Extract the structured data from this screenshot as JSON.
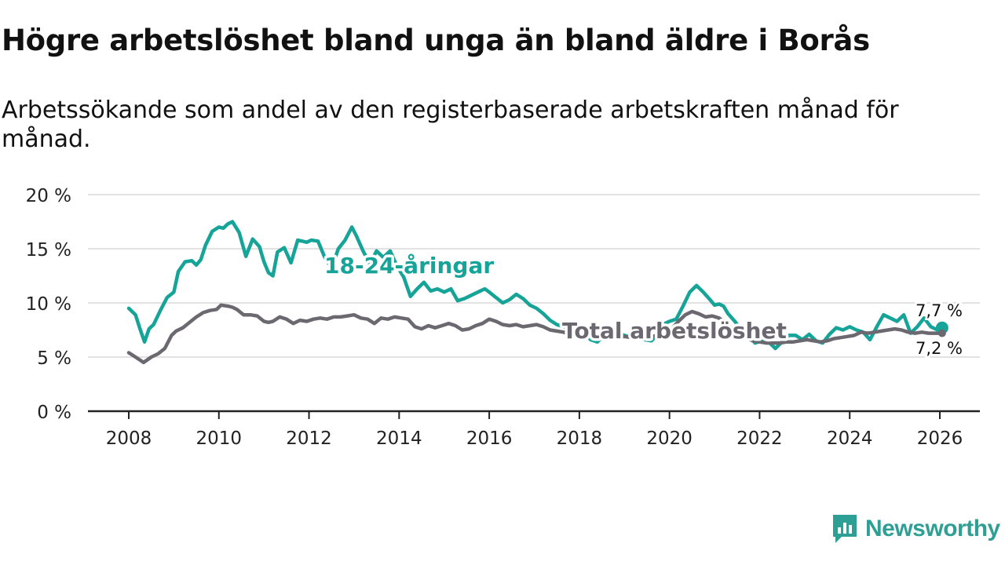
{
  "title": "Högre arbetslöshet bland unga än bland äldre i Borås",
  "subtitle": "Arbetssökande som andel av den registerbaserade arbetskraften månad för månad.",
  "brand": {
    "name": "Newsworthy",
    "icon": "newsworthy-logo-icon",
    "color": "#2d9f95"
  },
  "chart_data": {
    "type": "line",
    "title": "Högre arbetslöshet bland unga än bland äldre i Borås",
    "xlabel": "",
    "ylabel": "",
    "xlim": [
      2007.5,
      2026.95
    ],
    "ylim": [
      0,
      20
    ],
    "yticks": [
      0,
      5,
      10,
      15,
      20
    ],
    "ytick_labels": [
      "0 %",
      "5 %",
      "10 %",
      "15 %",
      "20 %"
    ],
    "xticks": [
      2008,
      2010,
      2012,
      2014,
      2016,
      2018,
      2020,
      2022,
      2024,
      2026
    ],
    "xtick_labels": [
      "2008",
      "2010",
      "2012",
      "2014",
      "2016",
      "2018",
      "2020",
      "2022",
      "2024",
      "2026"
    ],
    "grid": true,
    "series": [
      {
        "name": "18-24-åringar",
        "label": "18-24-åringar",
        "color": "#16a398",
        "end_label": "7,7 %",
        "x": [
          2008.0,
          2008.15,
          2008.25,
          2008.35,
          2008.45,
          2008.55,
          2008.7,
          2008.85,
          2009.0,
          2009.1,
          2009.25,
          2009.4,
          2009.5,
          2009.6,
          2009.7,
          2009.85,
          2010.0,
          2010.1,
          2010.2,
          2010.3,
          2010.45,
          2010.6,
          2010.75,
          2010.9,
          2011.0,
          2011.1,
          2011.2,
          2011.3,
          2011.45,
          2011.6,
          2011.75,
          2011.85,
          2011.95,
          2012.05,
          2012.2,
          2012.35,
          2012.5,
          2012.65,
          2012.8,
          2012.95,
          2013.05,
          2013.2,
          2013.35,
          2013.5,
          2013.65,
          2013.8,
          2013.95,
          2014.1,
          2014.25,
          2014.4,
          2014.55,
          2014.7,
          2014.85,
          2015.0,
          2015.15,
          2015.3,
          2015.45,
          2015.6,
          2015.75,
          2015.9,
          2016.0,
          2016.15,
          2016.3,
          2016.45,
          2016.6,
          2016.75,
          2016.9,
          2017.05,
          2017.2,
          2017.35,
          2017.5,
          2017.65,
          2017.8,
          2017.95,
          2018.1,
          2018.25,
          2018.4,
          2018.55,
          2018.7,
          2018.85,
          2019.0,
          2019.15,
          2019.3,
          2019.45,
          2019.6,
          2019.75,
          2019.9,
          2020.0,
          2020.15,
          2020.3,
          2020.45,
          2020.6,
          2020.75,
          2020.9,
          2021.0,
          2021.1,
          2021.2,
          2021.3,
          2021.45,
          2021.6,
          2021.75,
          2021.9,
          2022.05,
          2022.2,
          2022.35,
          2022.5,
          2022.65,
          2022.8,
          2022.95,
          2023.1,
          2023.25,
          2023.4,
          2023.55,
          2023.7,
          2023.85,
          2024.0,
          2024.15,
          2024.3,
          2024.45,
          2024.6,
          2024.75,
          2024.9,
          2025.05,
          2025.2,
          2025.35,
          2025.5,
          2025.65,
          2025.8,
          2025.95,
          2026.05
        ],
        "values": [
          9.5,
          8.9,
          7.6,
          6.4,
          7.6,
          8.0,
          9.3,
          10.5,
          11.0,
          12.9,
          13.8,
          13.9,
          13.5,
          14.0,
          15.3,
          16.6,
          17.0,
          16.9,
          17.3,
          17.5,
          16.5,
          14.3,
          15.9,
          15.2,
          13.8,
          12.8,
          12.5,
          14.7,
          15.1,
          13.7,
          15.8,
          15.7,
          15.6,
          15.8,
          15.7,
          14.2,
          13.2,
          15.0,
          15.8,
          17.0,
          16.2,
          14.8,
          13.6,
          14.8,
          14.2,
          14.8,
          13.4,
          12.4,
          10.6,
          11.3,
          11.9,
          11.1,
          11.3,
          11.0,
          11.3,
          10.2,
          10.4,
          10.7,
          11.0,
          11.3,
          11.0,
          10.5,
          10.0,
          10.3,
          10.8,
          10.4,
          9.8,
          9.5,
          9.0,
          8.4,
          8.0,
          7.8,
          7.6,
          7.7,
          7.3,
          6.6,
          6.4,
          7.0,
          7.5,
          7.2,
          7.0,
          6.8,
          7.0,
          6.6,
          6.5,
          7.2,
          8.1,
          8.3,
          8.5,
          9.7,
          11.0,
          11.6,
          11.0,
          10.3,
          9.8,
          9.9,
          9.7,
          9.0,
          8.3,
          7.5,
          7.0,
          6.3,
          6.5,
          6.4,
          5.8,
          6.4,
          7.0,
          7.0,
          6.6,
          7.1,
          6.5,
          6.3,
          7.1,
          7.7,
          7.5,
          7.8,
          7.5,
          7.3,
          6.6,
          7.8,
          8.9,
          8.6,
          8.3,
          8.9,
          7.2,
          7.8,
          8.6,
          7.8,
          7.5,
          7.7
        ]
      },
      {
        "name": "Total arbetslöshet",
        "label": "Total arbetslöshet",
        "color": "#6b6870",
        "end_label": "7,2 %",
        "x": [
          2008.0,
          2008.15,
          2008.33,
          2008.5,
          2008.65,
          2008.8,
          2008.95,
          2009.05,
          2009.2,
          2009.35,
          2009.5,
          2009.65,
          2009.8,
          2009.95,
          2010.05,
          2010.2,
          2010.3,
          2010.4,
          2010.55,
          2010.7,
          2010.85,
          2011.0,
          2011.1,
          2011.2,
          2011.35,
          2011.5,
          2011.65,
          2011.8,
          2011.95,
          2012.1,
          2012.25,
          2012.4,
          2012.55,
          2012.7,
          2012.85,
          2013.0,
          2013.15,
          2013.3,
          2013.45,
          2013.6,
          2013.75,
          2013.9,
          2014.05,
          2014.2,
          2014.35,
          2014.5,
          2014.65,
          2014.8,
          2014.95,
          2015.1,
          2015.25,
          2015.4,
          2015.55,
          2015.7,
          2015.85,
          2016.0,
          2016.15,
          2016.3,
          2016.45,
          2016.6,
          2016.75,
          2016.9,
          2017.05,
          2017.2,
          2017.35,
          2017.5,
          2017.65,
          2017.8,
          2017.95,
          2018.1,
          2018.25,
          2018.4,
          2018.55,
          2018.7,
          2018.85,
          2019.0,
          2019.15,
          2019.3,
          2019.45,
          2019.6,
          2019.75,
          2019.9,
          2020.05,
          2020.2,
          2020.35,
          2020.5,
          2020.65,
          2020.8,
          2020.95,
          2021.1,
          2021.25,
          2021.4,
          2021.55,
          2021.7,
          2021.85,
          2022.0,
          2022.15,
          2022.3,
          2022.45,
          2022.6,
          2022.75,
          2022.9,
          2023.05,
          2023.2,
          2023.35,
          2023.5,
          2023.65,
          2023.8,
          2023.95,
          2024.1,
          2024.25,
          2024.4,
          2024.55,
          2024.7,
          2024.85,
          2025.0,
          2025.15,
          2025.3,
          2025.45,
          2025.6,
          2025.75,
          2025.9,
          2026.05
        ],
        "values": [
          5.4,
          5.0,
          4.5,
          5.0,
          5.3,
          5.8,
          7.0,
          7.4,
          7.7,
          8.2,
          8.7,
          9.1,
          9.3,
          9.4,
          9.8,
          9.7,
          9.6,
          9.4,
          8.9,
          8.9,
          8.8,
          8.3,
          8.2,
          8.3,
          8.7,
          8.5,
          8.1,
          8.4,
          8.3,
          8.5,
          8.6,
          8.5,
          8.7,
          8.7,
          8.8,
          8.9,
          8.6,
          8.5,
          8.1,
          8.6,
          8.5,
          8.7,
          8.6,
          8.5,
          7.8,
          7.6,
          7.9,
          7.7,
          7.9,
          8.1,
          7.9,
          7.5,
          7.6,
          7.9,
          8.1,
          8.5,
          8.3,
          8.0,
          7.9,
          8.0,
          7.8,
          7.9,
          8.0,
          7.8,
          7.5,
          7.4,
          7.3,
          7.1,
          7.0,
          7.0,
          6.9,
          6.8,
          6.9,
          6.9,
          6.8,
          6.9,
          6.8,
          6.8,
          6.9,
          6.9,
          7.0,
          7.2,
          7.6,
          8.3,
          8.9,
          9.2,
          9.0,
          8.7,
          8.8,
          8.6,
          8.1,
          7.6,
          7.2,
          6.8,
          6.5,
          6.4,
          6.3,
          6.3,
          6.3,
          6.4,
          6.4,
          6.5,
          6.6,
          6.5,
          6.4,
          6.5,
          6.7,
          6.8,
          6.9,
          7.0,
          7.3,
          7.2,
          7.3,
          7.4,
          7.5,
          7.6,
          7.5,
          7.3,
          7.2,
          7.3,
          7.2,
          7.2,
          7.2
        ]
      }
    ]
  }
}
